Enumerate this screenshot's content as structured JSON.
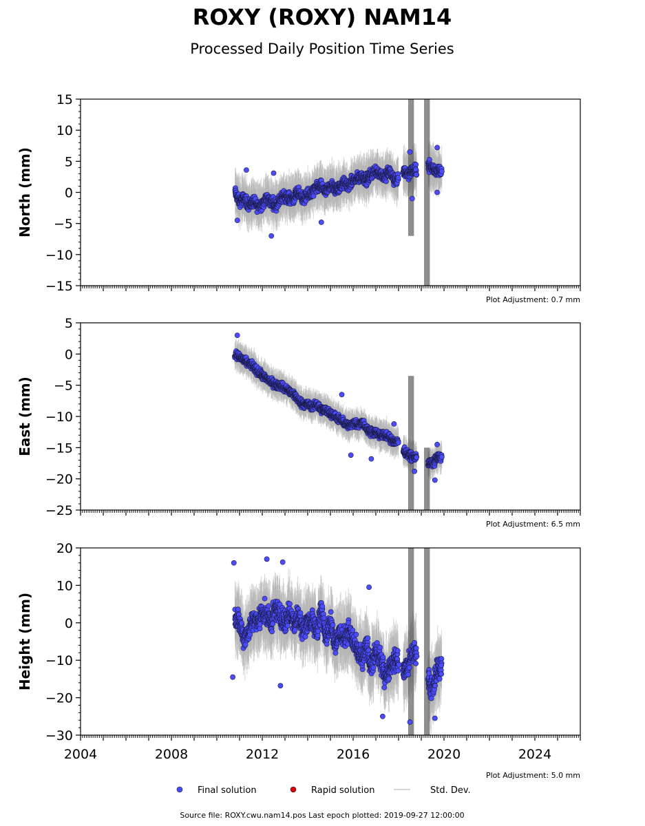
{
  "title": "ROXY (ROXY) NAM14",
  "subtitle": "Processed Daily Position Time Series",
  "footer": "Source file: ROXY.cwu.nam14.pos  Last epoch plotted: 2019-09-27 12:00:00",
  "legend": [
    {
      "label": "Final solution",
      "color": "#4b4bff",
      "kind": "dot"
    },
    {
      "label": "Rapid solution",
      "color": "#dd0000",
      "kind": "dot"
    },
    {
      "label": "Std. Dev.",
      "color": "#c8c8c8",
      "kind": "line"
    }
  ],
  "chart_data": [
    {
      "type": "scatter",
      "ylabel": "North (mm)",
      "ylim": [
        -15,
        15
      ],
      "yticks": [
        -15,
        -10,
        -5,
        0,
        5,
        10,
        15
      ],
      "xlim": [
        2004,
        2026
      ],
      "xticks": [
        2004,
        2008,
        2012,
        2016,
        2020,
        2024
      ],
      "show_xticklabels": false,
      "adjustment": "Plot Adjustment: 0.7 mm",
      "series": [
        {
          "name": "Final solution",
          "x": [
            2010.8,
            2011.0,
            2011.2,
            2011.4,
            2011.6,
            2011.8,
            2012.0,
            2012.2,
            2012.4,
            2012.6,
            2012.8,
            2013.0,
            2013.2,
            2013.4,
            2013.6,
            2013.8,
            2014.0,
            2014.2,
            2014.4,
            2014.6,
            2014.8,
            2015.0,
            2015.2,
            2015.4,
            2015.6,
            2015.8,
            2016.0,
            2016.2,
            2016.4,
            2016.6,
            2016.8,
            2017.0,
            2017.2,
            2017.4,
            2017.6,
            2017.8,
            2018.2,
            2018.4,
            2018.6,
            2019.3,
            2019.5,
            2019.7
          ],
          "y": [
            0.0,
            -1.5,
            -1.0,
            -2.0,
            -1.5,
            -2.2,
            -1.8,
            -1.0,
            -1.5,
            -2.0,
            -1.0,
            -0.5,
            -1.0,
            -0.8,
            0.0,
            -1.0,
            -0.5,
            0.0,
            0.8,
            1.0,
            0.0,
            1.2,
            0.5,
            0.8,
            1.5,
            1.0,
            2.0,
            2.2,
            2.5,
            2.0,
            3.0,
            3.5,
            3.0,
            2.5,
            3.5,
            2.0,
            3.5,
            3.0,
            3.5,
            4.5,
            3.8,
            3.5
          ]
        }
      ],
      "outliers": {
        "x": [
          2010.9,
          2011.3,
          2012.4,
          2012.5,
          2014.6,
          2018.6,
          2019.7,
          2019.7,
          2018.5
        ],
        "y": [
          -4.5,
          3.6,
          -7.0,
          3.1,
          -4.8,
          -1.0,
          7.2,
          0.0,
          6.5
        ]
      },
      "stddev_spikes": [
        {
          "x": 2018.55,
          "ymin": -7,
          "ymax": 15
        },
        {
          "x": 2019.25,
          "ymin": -15,
          "ymax": 15
        }
      ]
    },
    {
      "type": "scatter",
      "ylabel": "East (mm)",
      "ylim": [
        -25,
        5
      ],
      "yticks": [
        -25,
        -20,
        -15,
        -10,
        -5,
        0,
        5
      ],
      "xlim": [
        2004,
        2026
      ],
      "xticks": [
        2004,
        2008,
        2012,
        2016,
        2020,
        2024
      ],
      "show_xticklabels": false,
      "adjustment": "Plot Adjustment: 6.5 mm",
      "series": [
        {
          "name": "Final solution",
          "x": [
            2010.8,
            2011.0,
            2011.2,
            2011.4,
            2011.6,
            2011.8,
            2012.0,
            2012.2,
            2012.4,
            2012.6,
            2012.8,
            2013.0,
            2013.2,
            2013.4,
            2013.6,
            2013.8,
            2014.0,
            2014.2,
            2014.4,
            2014.6,
            2014.8,
            2015.0,
            2015.2,
            2015.4,
            2015.6,
            2015.8,
            2016.0,
            2016.2,
            2016.4,
            2016.6,
            2016.8,
            2017.0,
            2017.2,
            2017.4,
            2017.6,
            2017.8,
            2018.2,
            2018.4,
            2018.6,
            2019.3,
            2019.5,
            2019.7
          ],
          "y": [
            0.0,
            -0.5,
            -1.0,
            -1.5,
            -2.0,
            -2.8,
            -3.5,
            -4.0,
            -4.5,
            -5.0,
            -5.0,
            -5.5,
            -6.0,
            -6.5,
            -7.5,
            -8.0,
            -8.0,
            -8.5,
            -8.0,
            -9.0,
            -9.0,
            -9.5,
            -10.0,
            -10.5,
            -11.0,
            -11.5,
            -11.0,
            -11.5,
            -11.0,
            -12.0,
            -12.5,
            -12.5,
            -13.0,
            -13.0,
            -13.5,
            -14.0,
            -15.5,
            -16.0,
            -16.5,
            -17.5,
            -17.5,
            -16.5
          ]
        }
      ],
      "outliers": {
        "x": [
          2010.9,
          2015.5,
          2015.9,
          2016.8,
          2017.8,
          2019.6,
          2018.7,
          2019.7
        ],
        "y": [
          3.0,
          -6.5,
          -16.2,
          -16.8,
          -11.2,
          -20.2,
          -18.8,
          -14.5
        ]
      },
      "stddev_spikes": [
        {
          "x": 2018.55,
          "ymin": -25,
          "ymax": -3.5
        },
        {
          "x": 2019.25,
          "ymin": -25,
          "ymax": -15
        }
      ]
    },
    {
      "type": "scatter",
      "ylabel": "Height (mm)",
      "ylim": [
        -30,
        20
      ],
      "yticks": [
        -30,
        -20,
        -10,
        0,
        10,
        20
      ],
      "xlim": [
        2004,
        2026
      ],
      "xticks": [
        2004,
        2008,
        2012,
        2016,
        2020,
        2024
      ],
      "show_xticklabels": true,
      "adjustment": "Plot Adjustment: 5.0 mm",
      "series": [
        {
          "name": "Final solution",
          "x": [
            2010.8,
            2011.0,
            2011.2,
            2011.4,
            2011.6,
            2011.8,
            2012.0,
            2012.2,
            2012.4,
            2012.6,
            2012.8,
            2013.0,
            2013.2,
            2013.4,
            2013.6,
            2013.8,
            2014.0,
            2014.2,
            2014.4,
            2014.6,
            2014.8,
            2015.0,
            2015.2,
            2015.4,
            2015.6,
            2015.8,
            2016.0,
            2016.2,
            2016.4,
            2016.6,
            2016.8,
            2017.0,
            2017.2,
            2017.4,
            2017.6,
            2017.8,
            2018.2,
            2018.4,
            2018.6,
            2019.3,
            2019.5,
            2019.7
          ],
          "y": [
            2.0,
            0.0,
            -4.0,
            -2.0,
            1.0,
            0.0,
            3.0,
            2.0,
            0.0,
            4.0,
            2.0,
            0.0,
            3.0,
            0.0,
            2.0,
            -2.0,
            1.0,
            0.0,
            -2.0,
            3.0,
            -3.0,
            0.0,
            -5.0,
            -3.0,
            -4.0,
            -2.0,
            -5.0,
            -8.0,
            -10.0,
            -6.0,
            -12.0,
            -8.0,
            -10.0,
            -14.0,
            -12.0,
            -10.0,
            -13.0,
            -12.0,
            -8.0,
            -15.0,
            -18.0,
            -12.0
          ]
        }
      ],
      "outliers": {
        "x": [
          2010.7,
          2010.75,
          2012.2,
          2012.8,
          2012.9,
          2016.7,
          2018.5,
          2019.6,
          2017.3
        ],
        "y": [
          -14.5,
          16.0,
          17.0,
          -16.8,
          16.2,
          9.5,
          -26.5,
          -25.5,
          -25.0
        ]
      },
      "stddev_spikes": [
        {
          "x": 2018.55,
          "ymin": -30,
          "ymax": 20
        },
        {
          "x": 2019.25,
          "ymin": -30,
          "ymax": 20
        }
      ]
    }
  ]
}
